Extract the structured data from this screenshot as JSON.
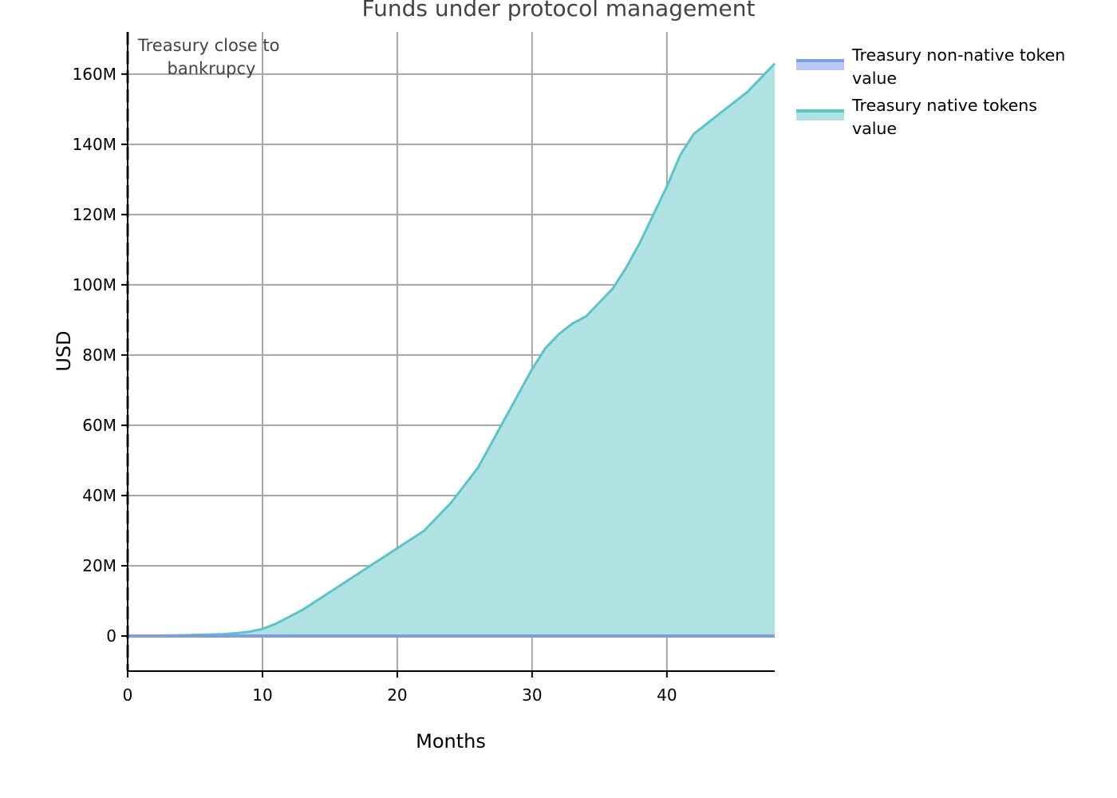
{
  "chart_data": {
    "type": "area",
    "title": "Funds under protocol management",
    "xlabel": "Months",
    "ylabel": "USD",
    "xlim": [
      0,
      48
    ],
    "ylim": [
      -10000000,
      172000000
    ],
    "x_ticks": [
      0,
      10,
      20,
      30,
      40
    ],
    "y_ticks": [
      0,
      20000000,
      40000000,
      60000000,
      80000000,
      100000000,
      120000000,
      140000000,
      160000000
    ],
    "y_tick_labels": [
      "0",
      "20M",
      "40M",
      "60M",
      "80M",
      "100M",
      "120M",
      "140M",
      "160M"
    ],
    "grid": true,
    "legend_position": "outside-top-right",
    "annotation": {
      "x": 0,
      "lines": [
        "Treasury close to",
        "bankrupcy"
      ]
    },
    "series": [
      {
        "name": "Treasury non-native token value",
        "legend_lines": [
          "Treasury non-native token",
          "value"
        ],
        "color": "#7b9ee6",
        "fill": "#b8c8f2",
        "x": [
          0,
          5,
          10,
          15,
          20,
          25,
          30,
          35,
          40,
          45,
          48
        ],
        "values": [
          0,
          0,
          0,
          0,
          0,
          0,
          0,
          0,
          0,
          0,
          0
        ]
      },
      {
        "name": "Treasury native tokens value",
        "legend_lines": [
          "Treasury native tokens",
          "value"
        ],
        "color": "#5bc4c6",
        "fill": "#b0e1e3",
        "x": [
          0,
          2,
          4,
          5,
          6,
          7,
          8,
          9,
          10,
          11,
          12,
          13,
          14,
          15,
          16,
          17,
          18,
          19,
          20,
          21,
          22,
          23,
          24,
          25,
          26,
          27,
          28,
          29,
          30,
          31,
          32,
          33,
          34,
          35,
          36,
          37,
          38,
          39,
          40,
          41,
          42,
          43,
          44,
          45,
          46,
          47,
          48
        ],
        "values": [
          0,
          100000,
          200000,
          300000,
          400000,
          500000,
          800000,
          1200000,
          2000000,
          3500000,
          5500000,
          7500000,
          10000000,
          12500000,
          15000000,
          17500000,
          20000000,
          22500000,
          25000000,
          27500000,
          30000000,
          34000000,
          38000000,
          43000000,
          48000000,
          55000000,
          62000000,
          69000000,
          76000000,
          82000000,
          86000000,
          89000000,
          91000000,
          95000000,
          99000000,
          105000000,
          112000000,
          120000000,
          128000000,
          137000000,
          143000000,
          146000000,
          149000000,
          152000000,
          155000000,
          159000000,
          163000000
        ]
      }
    ]
  }
}
